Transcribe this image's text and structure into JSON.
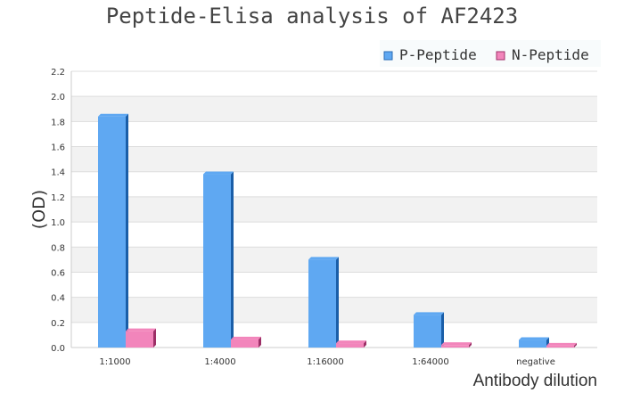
{
  "chart_data": {
    "type": "bar",
    "title": "Peptide-Elisa analysis of AF2423",
    "xlabel": "Antibody dilution",
    "ylabel": "(OD)",
    "ylim": [
      0,
      2.2
    ],
    "yticks": [
      "0.0",
      "0.2",
      "0.4",
      "0.6",
      "0.8",
      "1.0",
      "1.2",
      "1.4",
      "1.6",
      "1.8",
      "2.0",
      "2.2"
    ],
    "grid": true,
    "legend_position": "top-right",
    "categories": [
      "1:1000",
      "1:4000",
      "1:16000",
      "1:64000",
      "negative"
    ],
    "series": [
      {
        "name": "P-Peptide",
        "color": "#5fa8f2",
        "values": [
          1.84,
          1.38,
          0.7,
          0.26,
          0.06
        ]
      },
      {
        "name": "N-Peptide",
        "color": "#f285bb",
        "values": [
          0.13,
          0.065,
          0.035,
          0.02,
          0.015
        ]
      }
    ]
  }
}
